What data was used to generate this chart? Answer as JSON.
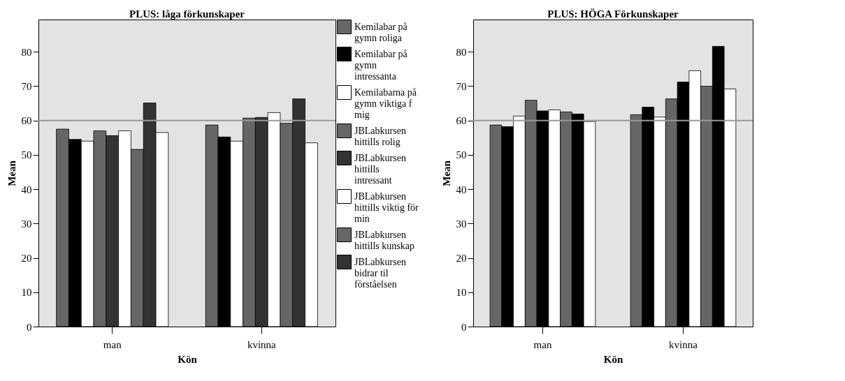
{
  "chart_data": [
    {
      "type": "bar",
      "title": "PLUS: låga förkunskaper",
      "xlabel": "Kön",
      "ylabel": "Mean",
      "categories": [
        "man",
        "kvinna"
      ],
      "ylim": [
        0,
        89.4
      ],
      "yticks": [
        0,
        10,
        20,
        30,
        40,
        50,
        60,
        70,
        80
      ],
      "grid": false,
      "legend": "right",
      "ref_lines": [
        {
          "axis": "y",
          "value": 60,
          "color": "#999999"
        }
      ],
      "series": [
        {
          "name": "Kemilabar på gymn roliga",
          "color": "#666666",
          "values": [
            57.5,
            58.7
          ]
        },
        {
          "name": "Kemilabar på gymn intressanta",
          "color": "#000000",
          "values": [
            54.5,
            55.2
          ]
        },
        {
          "name": "Kemilabarna på gymn viktiga f mig",
          "color": "#ffffff",
          "values": [
            54.0,
            54.0
          ]
        },
        {
          "name": "JBLabkursen hittills rolig",
          "color": "#666666",
          "values": [
            57.0,
            60.7
          ]
        },
        {
          "name": "JBLabkursen hittills intressant",
          "color": "#333333",
          "values": [
            55.6,
            60.9
          ]
        },
        {
          "name": "JBLabkursen hittills viktig för min",
          "color": "#ffffff",
          "values": [
            57.0,
            62.3
          ]
        },
        {
          "name": "JBLabkursen hittills kunskap",
          "color": "#666666",
          "values": [
            51.6,
            59.2
          ]
        },
        {
          "name": "JBLabkursen bidrar til förståelsen",
          "color": "#333333",
          "values": [
            65.1,
            66.3
          ]
        },
        {
          "color": "#ffffff",
          "values": [
            56.5,
            53.5
          ]
        }
      ]
    },
    {
      "type": "bar",
      "title": "PLUS: HÖGA Förkunskaper",
      "xlabel": "Kön",
      "ylabel": "Mean",
      "categories": [
        "man",
        "kvinna"
      ],
      "ylim": [
        0,
        89.4
      ],
      "yticks": [
        0,
        10,
        20,
        30,
        40,
        50,
        60,
        70,
        80
      ],
      "grid": false,
      "legend": false,
      "ref_lines": [
        {
          "axis": "y",
          "value": 60,
          "color": "#999999"
        }
      ],
      "series": [
        {
          "color": "#666666",
          "values": [
            58.7,
            61.7
          ]
        },
        {
          "color": "#000000",
          "values": [
            58.2,
            63.9
          ]
        },
        {
          "color": "#ffffff",
          "values": [
            61.3,
            61.0
          ]
        },
        {
          "color": "#666666",
          "values": [
            65.9,
            66.3
          ]
        },
        {
          "color": "#000000",
          "values": [
            62.8,
            71.2
          ]
        },
        {
          "color": "#ffffff",
          "values": [
            63.1,
            74.5
          ]
        },
        {
          "color": "#666666",
          "values": [
            62.5,
            70.0
          ]
        },
        {
          "color": "#000000",
          "values": [
            61.9,
            81.6
          ]
        },
        {
          "color": "#ffffff",
          "values": [
            59.7,
            69.2
          ]
        }
      ]
    }
  ]
}
